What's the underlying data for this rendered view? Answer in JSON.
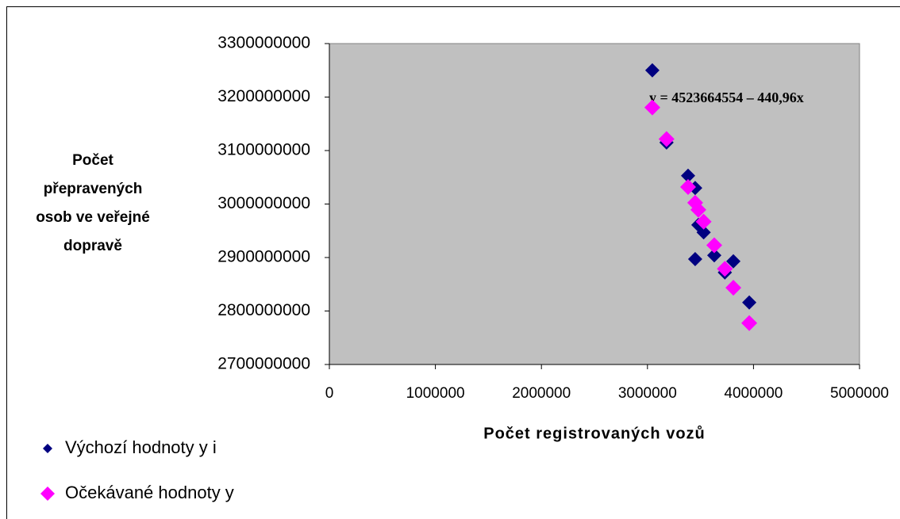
{
  "chart_data": {
    "type": "scatter",
    "x_label": "Počet registrovaných vozů",
    "y_label": [
      "Počet",
      "přepravených",
      "osob ve veřejné",
      "dopravě"
    ],
    "annotation": "y = 4523664554 – 440,96x",
    "xlim": [
      0,
      5000000
    ],
    "xticks": [
      0,
      1000000,
      2000000,
      3000000,
      4000000,
      5000000
    ],
    "ylim": [
      2700000000,
      3300000000
    ],
    "yticks": [
      2700000000,
      2800000000,
      2900000000,
      3000000000,
      3100000000,
      3200000000,
      3300000000
    ],
    "grid": false,
    "plot_background": "#c0c0c0",
    "series": [
      {
        "name": "Výchozí hodnoty y i",
        "color": "#000080",
        "x": [
          3046000,
          3180000,
          3383000,
          3450000,
          3480000,
          3530000,
          3450000,
          3630000,
          3810000,
          3730000,
          3960000
        ],
        "values": [
          3250000000,
          3115000000,
          3053000000,
          3030000000,
          2961000000,
          2947000000,
          2897000000,
          2904000000,
          2893000000,
          2872000000,
          2816000000
        ]
      },
      {
        "name": "Očekávané hodnoty y",
        "color": "#ff00ff",
        "x": [
          3046000,
          3180000,
          3383000,
          3450000,
          3480000,
          3530000,
          3630000,
          3810000,
          3730000,
          3960000
        ],
        "values": [
          3180500000,
          3121400000,
          3031900000,
          3002400000,
          2989200000,
          2967100000,
          2923000000,
          2843600000,
          2878900000,
          2777500000
        ]
      }
    ]
  }
}
